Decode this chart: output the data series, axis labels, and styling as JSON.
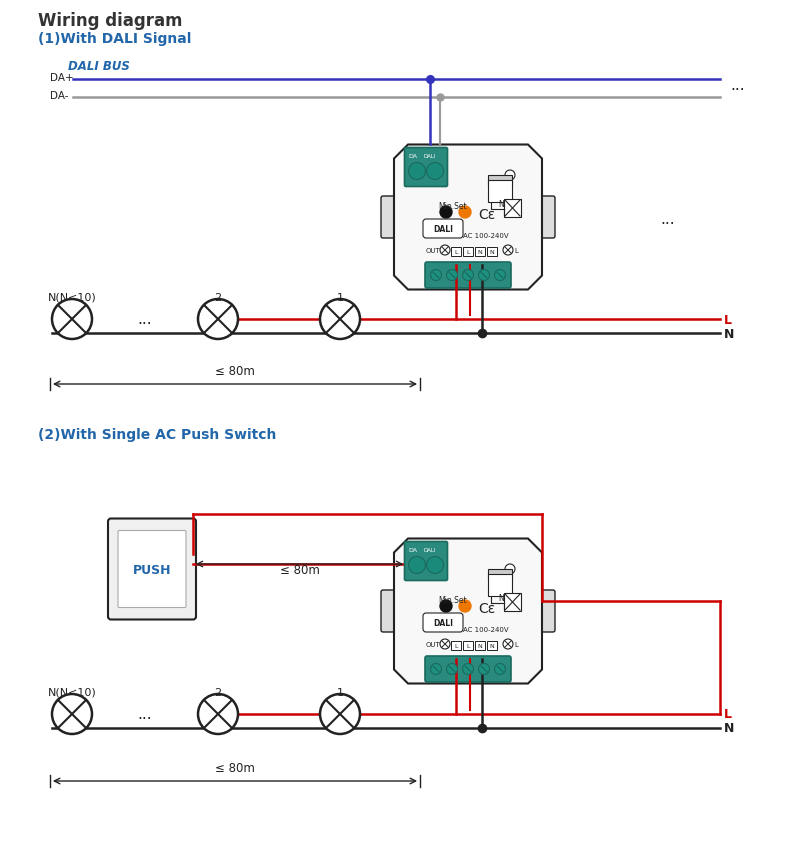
{
  "title": "Wiring diagram",
  "section1_title": "(1)With DALI Signal",
  "section2_title": "(2)With Single AC Push Switch",
  "dali_bus_label": "DALI BUS",
  "da_plus_label": "DA+",
  "da_minus_label": "DA-",
  "ellipsis": "...",
  "leq_80m": "≤ 80m",
  "L_label": "L",
  "N_label": "N",
  "light_labels_1": [
    "N(N<10)",
    "2",
    "1"
  ],
  "push_label": "PUSH",
  "color_blue": "#3333bb",
  "color_gray": "#999999",
  "color_red": "#cc0000",
  "color_black": "#222222",
  "color_white": "#ffffff",
  "color_teal": "#2a8a7e",
  "color_teal_dark": "#1a6a5e",
  "color_teal_screw": "#1d7a6e",
  "color_orange": "#ee7700",
  "color_bg": "#ffffff",
  "color_title": "#333333",
  "color_section": "#2266aa",
  "color_dali_label": "#2266aa",
  "color_ctrl_bg": "#f8f8f8",
  "color_clip": "#dddddd"
}
